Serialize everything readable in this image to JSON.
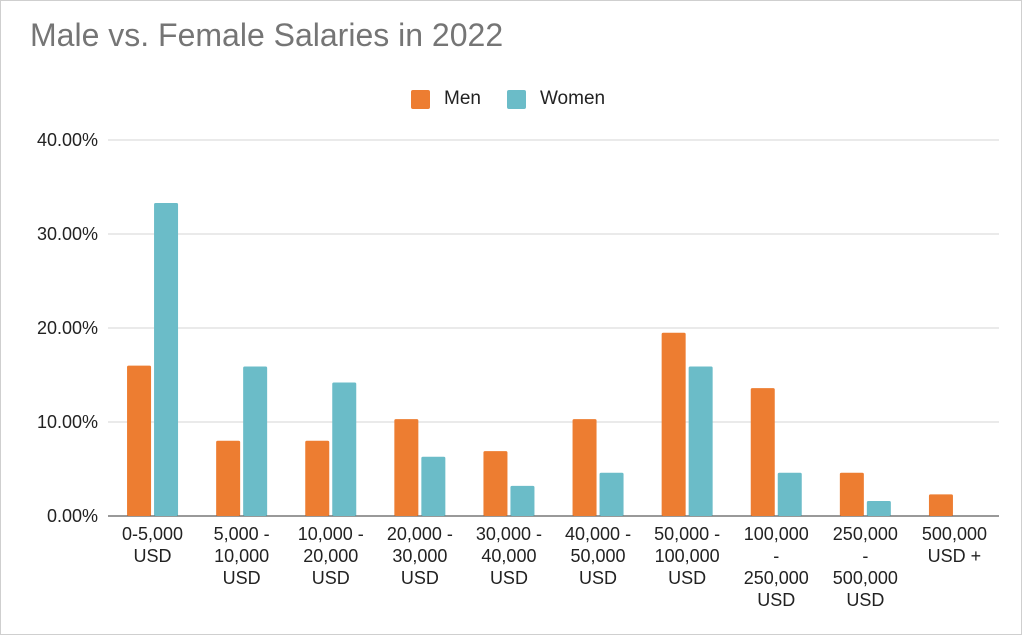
{
  "chart_data": {
    "type": "bar",
    "title": "Male vs. Female Salaries in 2022",
    "xlabel": "",
    "ylabel": "",
    "categories": [
      [
        "0-5,000",
        "USD"
      ],
      [
        "5,000 -",
        "10,000",
        "USD"
      ],
      [
        "10,000 -",
        "20,000",
        "USD"
      ],
      [
        "20,000 -",
        "30,000",
        "USD"
      ],
      [
        "30,000 -",
        "40,000",
        "USD"
      ],
      [
        "40,000 -",
        "50,000",
        "USD"
      ],
      [
        "50,000 -",
        "100,000",
        "USD"
      ],
      [
        "100,000",
        "-",
        "250,000",
        "USD"
      ],
      [
        "250,000",
        "-",
        "500,000",
        "USD"
      ],
      [
        "500,000",
        "USD +"
      ]
    ],
    "series": [
      {
        "name": "Men",
        "color": "#ED7D31",
        "values": [
          16.0,
          8.0,
          8.0,
          10.3,
          6.9,
          10.3,
          19.5,
          13.6,
          4.6,
          2.3
        ]
      },
      {
        "name": "Women",
        "color": "#6BBCC8",
        "values": [
          33.3,
          15.9,
          14.2,
          6.3,
          3.2,
          4.6,
          15.9,
          4.6,
          1.6,
          0.0
        ]
      }
    ],
    "y_ticks": [
      "0.00%",
      "10.00%",
      "20.00%",
      "30.00%",
      "40.00%"
    ],
    "ylim": [
      0,
      40
    ],
    "grid": true,
    "legend_position": "top-center"
  }
}
